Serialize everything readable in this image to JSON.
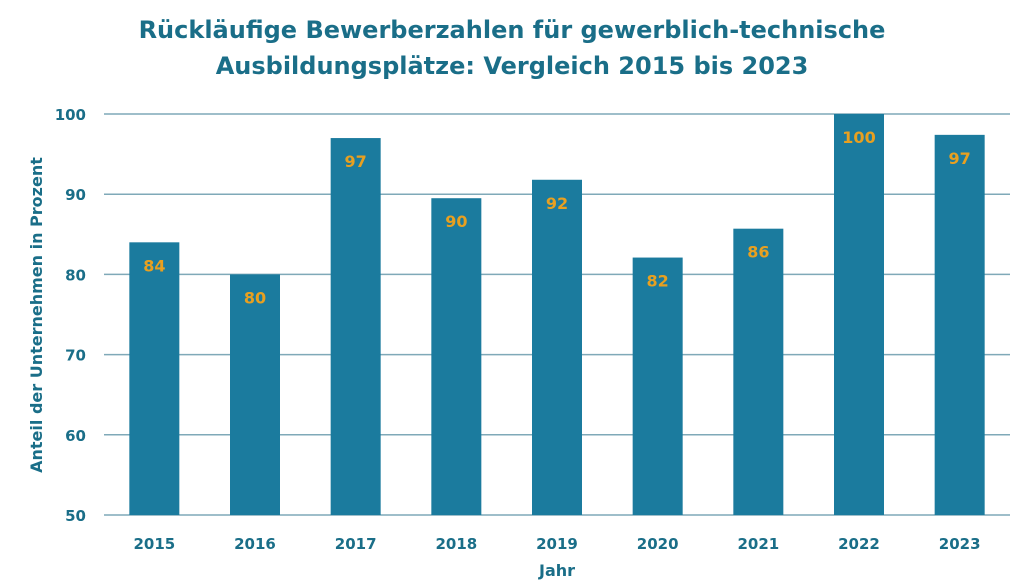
{
  "chart_data": {
    "type": "bar",
    "title_line1": "Rückläufige Bewerberzahlen für gewerblich-technische",
    "title_line2": "Ausbildungsplätze: Vergleich 2015 bis 2023",
    "xlabel": "Jahr",
    "ylabel": "Anteil der Unternehmen in Prozent",
    "categories": [
      "2015",
      "2016",
      "2017",
      "2018",
      "2019",
      "2020",
      "2021",
      "2022",
      "2023"
    ],
    "values": [
      84,
      80,
      97,
      89.5,
      91.8,
      82.1,
      85.7,
      100,
      97.4
    ],
    "data_labels": [
      "84",
      "80",
      "97",
      "90",
      "92",
      "82",
      "86",
      "100",
      "97"
    ],
    "ylim": [
      50,
      100
    ],
    "yticks": [
      "50",
      "60",
      "70",
      "80",
      "90",
      "100"
    ],
    "grid": true,
    "legend": "none",
    "colors": {
      "bar": "#1b7b9e",
      "label": "#e8a020",
      "text": "#1a6e88",
      "grid": "#7fa9b8"
    }
  }
}
